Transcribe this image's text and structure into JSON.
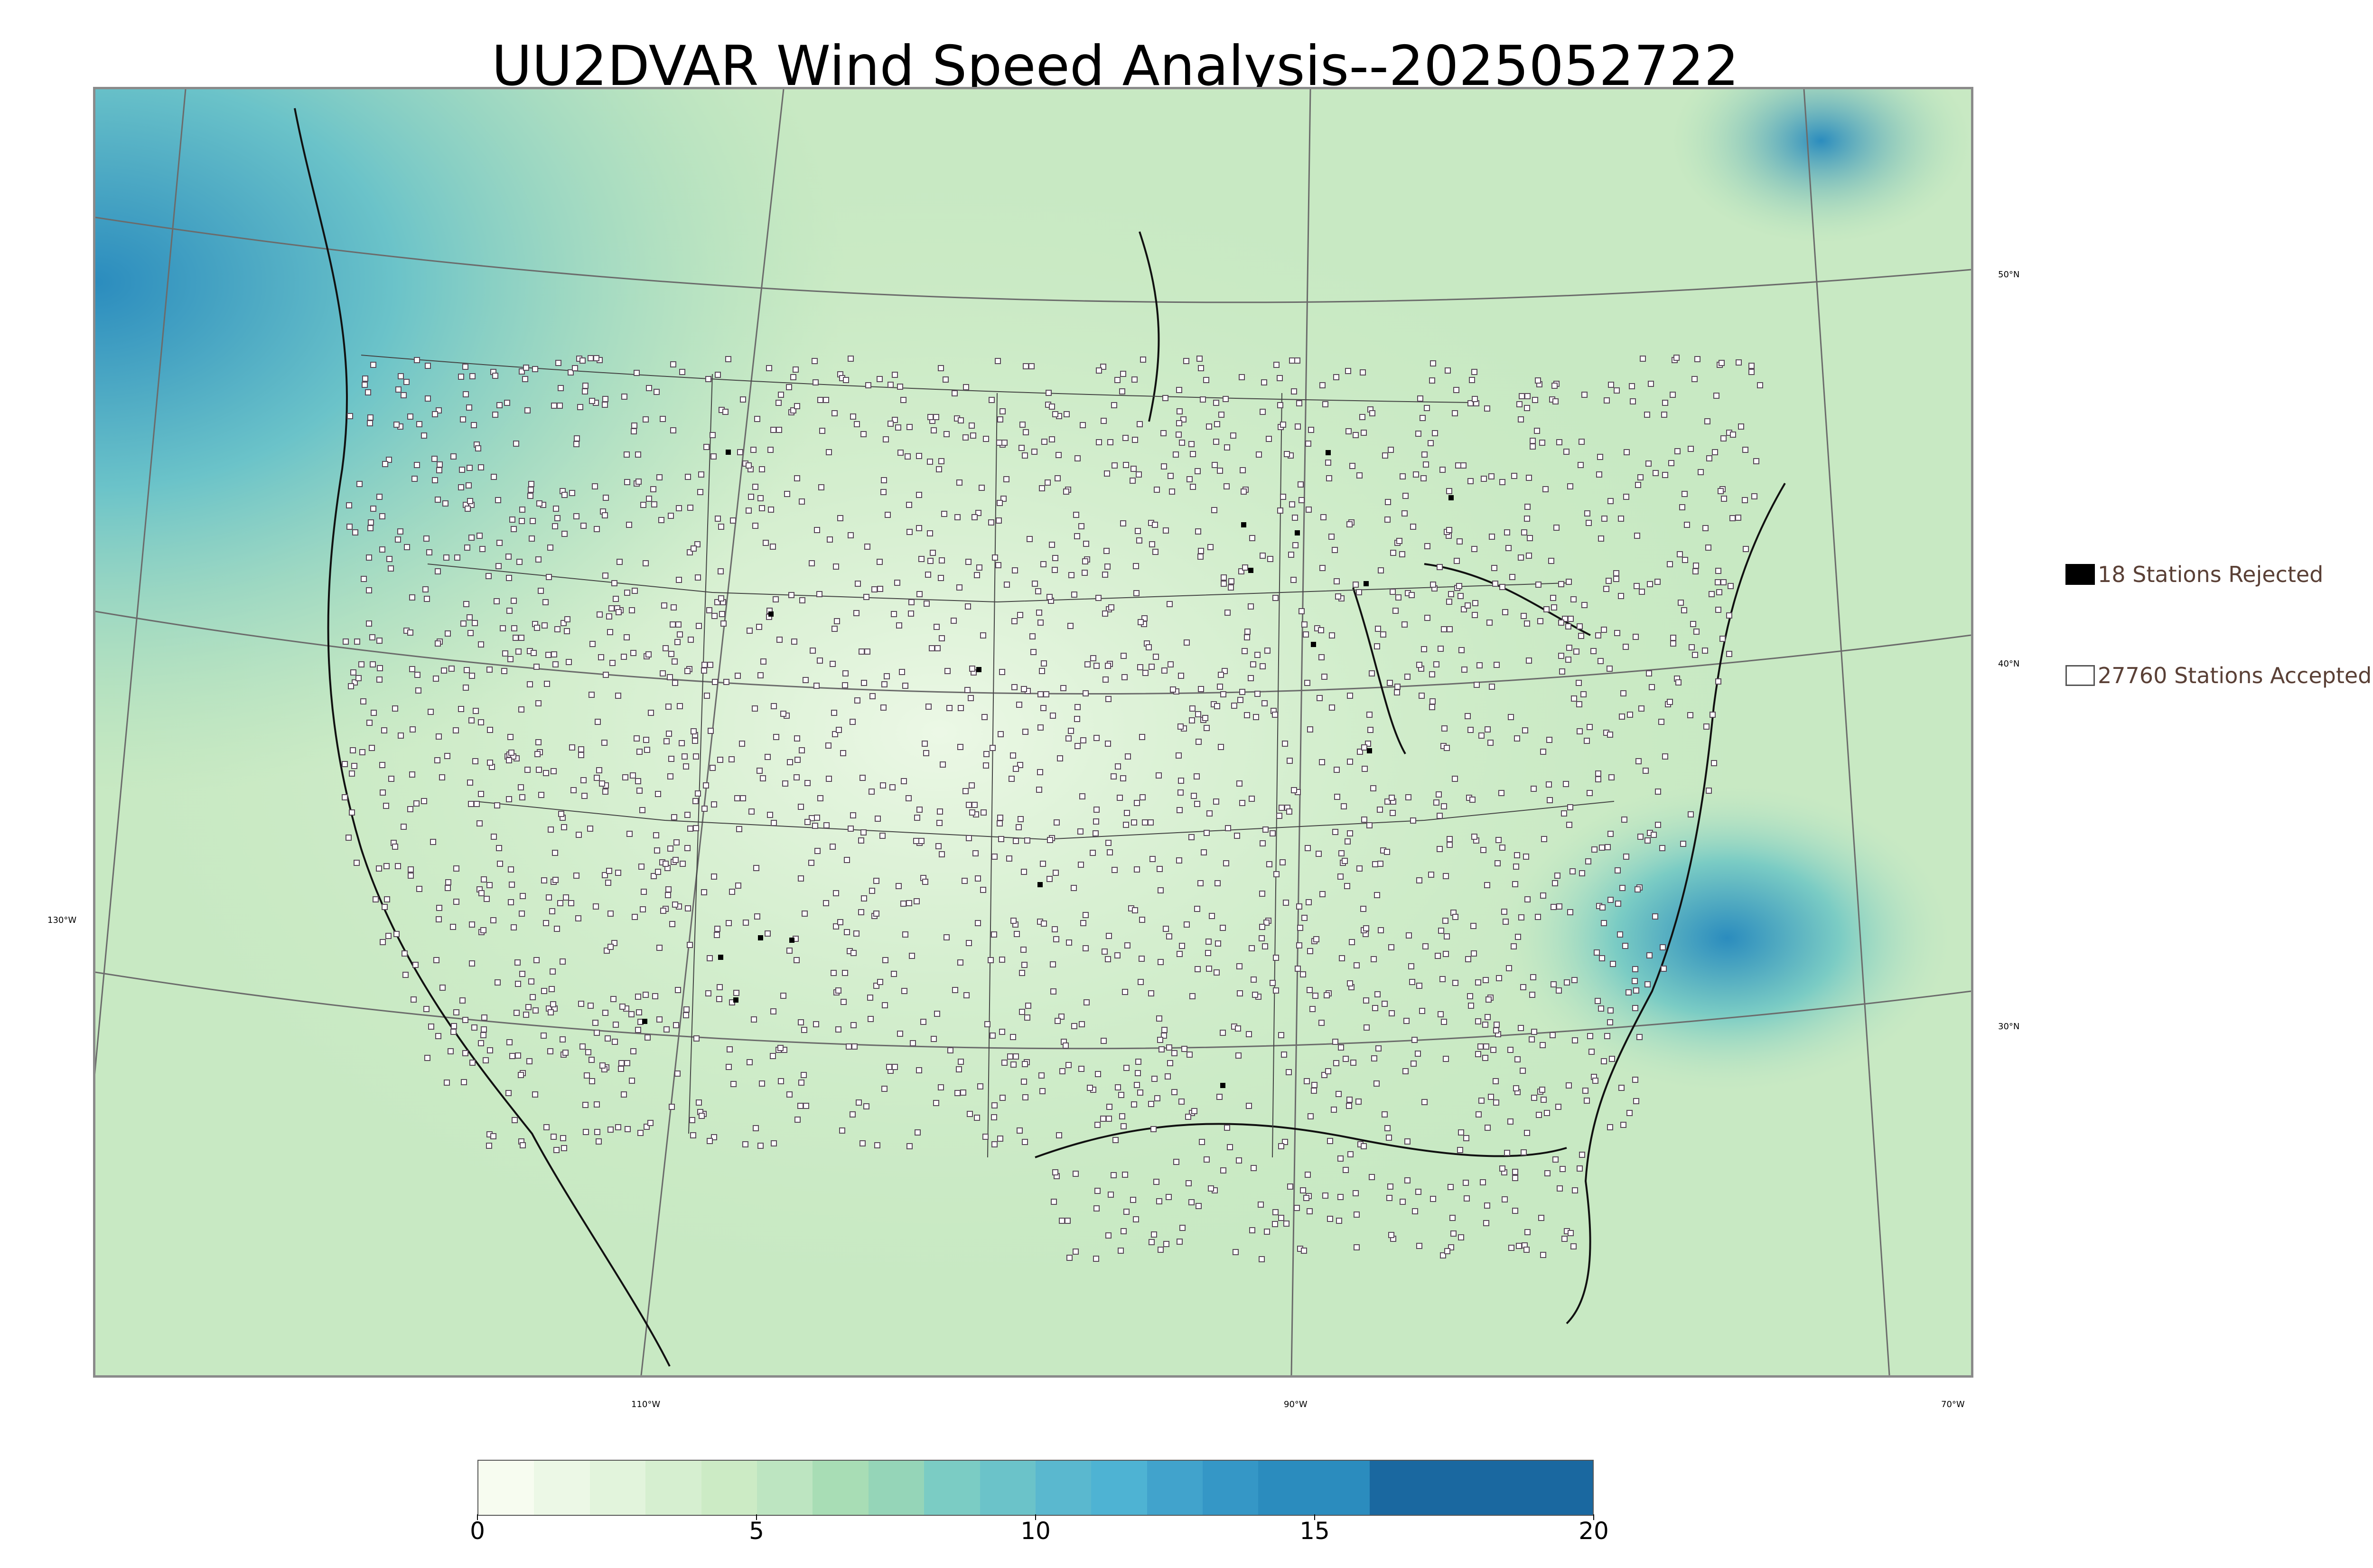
{
  "title": "UU2DVAR Wind Speed Analysis--2025052722",
  "legend": {
    "rejected": {
      "label": "18 Stations Rejected",
      "color": "#000000"
    },
    "accepted": {
      "label": "27760 Stations Accepted",
      "color": "#ffffff"
    }
  },
  "graticule": {
    "lat_labels": [
      "50°N",
      "40°N",
      "30°N"
    ],
    "lon_labels": [
      "130°W",
      "110°W",
      "90°W",
      "70°W"
    ]
  },
  "colorbar": {
    "min": 0,
    "max": 20,
    "ticks": [
      "0",
      "5",
      "10",
      "15",
      "20"
    ],
    "stops": [
      {
        "from": 0,
        "to": 1,
        "color": "#f7fcf0"
      },
      {
        "from": 1,
        "to": 2,
        "color": "#ecf8e6"
      },
      {
        "from": 2,
        "to": 3,
        "color": "#e2f4dc"
      },
      {
        "from": 3,
        "to": 4,
        "color": "#d6efd0"
      },
      {
        "from": 4,
        "to": 5,
        "color": "#ccebc5"
      },
      {
        "from": 5,
        "to": 6,
        "color": "#bde5c1"
      },
      {
        "from": 6,
        "to": 7,
        "color": "#a8ddb5"
      },
      {
        "from": 7,
        "to": 8,
        "color": "#95d5b8"
      },
      {
        "from": 8,
        "to": 9,
        "color": "#7bccc4"
      },
      {
        "from": 9,
        "to": 10,
        "color": "#6bc3c9"
      },
      {
        "from": 10,
        "to": 11,
        "color": "#5ab8cf"
      },
      {
        "from": 11,
        "to": 12,
        "color": "#4eb3d3"
      },
      {
        "from": 12,
        "to": 13,
        "color": "#41a3cc"
      },
      {
        "from": 13,
        "to": 14,
        "color": "#3597c6"
      },
      {
        "from": 14,
        "to": 16,
        "color": "#2b8cbe"
      },
      {
        "from": 16,
        "to": 20,
        "color": "#1a68a0"
      }
    ]
  }
}
